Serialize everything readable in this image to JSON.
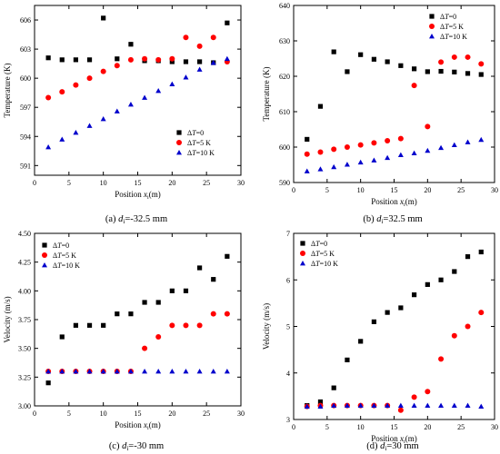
{
  "legend_dt_prefix": "Δ",
  "legend_dt_letter": "T",
  "caption_d_letter": "d",
  "caption_d_sub": "i",
  "x_axis_label_prefix": "Position ",
  "x_axis_label_x": "x",
  "x_axis_label_sub": "i",
  "x_axis_label_suffix": "(m)",
  "series_styles": [
    {
      "marker": "square",
      "color": "#000000"
    },
    {
      "marker": "circle",
      "color": "#ff0000"
    },
    {
      "marker": "triangle",
      "color": "#0000cc"
    }
  ],
  "chart_data": [
    {
      "type": "scatter",
      "panel_label": "(a)",
      "caption_value": "=-32.5 mm",
      "ylabel": "Temperature (K)",
      "xlim": [
        0,
        30
      ],
      "ylim": [
        590,
        607.5
      ],
      "xticks": [
        "0",
        "5",
        "10",
        "15",
        "20",
        "25",
        "30"
      ],
      "xtick_values": [
        0,
        5,
        10,
        15,
        20,
        25,
        30
      ],
      "yticks": [
        "591",
        "594",
        "597",
        "600",
        "603",
        "606"
      ],
      "ytick_values": [
        591,
        594,
        597,
        600,
        603,
        606
      ],
      "legend_position": "lower-right",
      "x": [
        2,
        4,
        6,
        8,
        10,
        12,
        14,
        16,
        18,
        20,
        22,
        24,
        26,
        28
      ],
      "series": [
        {
          "name": "=0",
          "legend_text": "=0",
          "values": [
            602.1,
            601.9,
            601.9,
            601.9,
            606.2,
            602.0,
            603.5,
            601.8,
            601.8,
            601.7,
            601.7,
            601.7,
            601.6,
            605.7
          ]
        },
        {
          "name": "=5 K",
          "legend_text": "=5 K",
          "values": [
            598.0,
            598.6,
            599.3,
            600.0,
            600.7,
            601.3,
            601.9,
            602.0,
            601.9,
            602.0,
            604.2,
            603.3,
            604.2,
            601.7
          ]
        },
        {
          "name": "=10 K",
          "legend_text": "=10 K",
          "values": [
            592.9,
            593.7,
            594.4,
            595.1,
            595.8,
            596.6,
            597.3,
            598.0,
            598.7,
            599.4,
            600.1,
            600.9,
            601.6,
            602.0
          ]
        }
      ]
    },
    {
      "type": "scatter",
      "panel_label": "(b)",
      "caption_value": "=32.5 mm",
      "ylabel": "Temperature (K)",
      "xlim": [
        0,
        30
      ],
      "ylim": [
        590,
        640
      ],
      "xticks": [
        "0",
        "5",
        "10",
        "15",
        "20",
        "25",
        "30"
      ],
      "xtick_values": [
        0,
        5,
        10,
        15,
        20,
        25,
        30
      ],
      "yticks": [
        "590",
        "600",
        "610",
        "620",
        "630",
        "640"
      ],
      "ytick_values": [
        590,
        600,
        610,
        620,
        630,
        640
      ],
      "legend_position": "top-right",
      "x": [
        2,
        4,
        6,
        8,
        10,
        12,
        14,
        16,
        18,
        20,
        22,
        24,
        26,
        28
      ],
      "series": [
        {
          "name": "=0",
          "legend_text": "=0",
          "values": [
            602.2,
            611.5,
            626.9,
            621.3,
            626.1,
            624.8,
            624.1,
            623.0,
            622.1,
            621.3,
            621.4,
            621.2,
            620.8,
            620.5
          ]
        },
        {
          "name": "=5 K",
          "legend_text": "=5 K",
          "values": [
            598.0,
            598.6,
            599.4,
            600.0,
            600.6,
            601.2,
            601.8,
            602.4,
            617.4,
            605.8,
            624.0,
            625.4,
            625.4,
            623.5
          ]
        },
        {
          "name": "=10 K",
          "legend_text": "=10 K",
          "values": [
            593.2,
            593.8,
            594.4,
            595.1,
            595.7,
            596.3,
            597.0,
            597.8,
            598.3,
            599.0,
            599.8,
            600.6,
            601.4,
            602.1
          ]
        }
      ]
    },
    {
      "type": "scatter",
      "panel_label": "(c)",
      "caption_value": "=-30 mm",
      "ylabel": "Velocity (m/s)",
      "xlim": [
        0,
        30
      ],
      "ylim": [
        3.0,
        4.5
      ],
      "xticks": [
        "0",
        "5",
        "10",
        "15",
        "20",
        "25",
        "30"
      ],
      "xtick_values": [
        0,
        5,
        10,
        15,
        20,
        25,
        30
      ],
      "yticks": [
        "3.00",
        "3.25",
        "3.50",
        "3.75",
        "4.00",
        "4.25",
        "4.50"
      ],
      "ytick_values": [
        3.0,
        3.25,
        3.5,
        3.75,
        4.0,
        4.25,
        4.5
      ],
      "legend_position": "top-left",
      "x": [
        2,
        4,
        6,
        8,
        10,
        12,
        14,
        16,
        18,
        20,
        22,
        24,
        26,
        28
      ],
      "series": [
        {
          "name": "=0",
          "legend_text": "=0",
          "values": [
            3.2,
            3.6,
            3.7,
            3.7,
            3.7,
            3.8,
            3.8,
            3.9,
            3.9,
            4.0,
            4.0,
            4.2,
            4.1,
            4.3
          ]
        },
        {
          "name": "=5 K",
          "legend_text": "=5 K",
          "values": [
            3.3,
            3.3,
            3.3,
            3.3,
            3.3,
            3.3,
            3.3,
            3.5,
            3.6,
            3.7,
            3.7,
            3.7,
            3.8,
            3.8
          ]
        },
        {
          "name": "=10 K",
          "legend_text": "=10 K",
          "values": [
            3.3,
            3.3,
            3.3,
            3.3,
            3.3,
            3.3,
            3.3,
            3.3,
            3.3,
            3.3,
            3.3,
            3.3,
            3.3,
            3.3
          ]
        }
      ]
    },
    {
      "type": "scatter",
      "panel_label": "(d)",
      "caption_value": "=30 mm",
      "ylabel": "Velocity (m/s)",
      "xlim": [
        0,
        30
      ],
      "ylim": [
        3.0,
        7.0
      ],
      "xticks": [
        "0",
        "5",
        "10",
        "15",
        "20",
        "25",
        "30"
      ],
      "xtick_values": [
        0,
        5,
        10,
        15,
        20,
        25,
        30
      ],
      "yticks": [
        "3",
        "4",
        "5",
        "6",
        "7"
      ],
      "ytick_values": [
        3,
        4,
        5,
        6,
        7
      ],
      "legend_position": "top-left",
      "x": [
        2,
        4,
        6,
        8,
        10,
        12,
        14,
        16,
        18,
        20,
        22,
        24,
        26,
        28
      ],
      "series": [
        {
          "name": "=0",
          "legend_text": "=0",
          "values": [
            3.3,
            3.38,
            3.68,
            4.28,
            4.68,
            5.1,
            5.3,
            5.4,
            5.68,
            5.9,
            6.0,
            6.18,
            6.5,
            6.6
          ]
        },
        {
          "name": "=5 K",
          "legend_text": "=5 K",
          "values": [
            3.28,
            3.3,
            3.3,
            3.3,
            3.3,
            3.3,
            3.3,
            3.2,
            3.48,
            3.6,
            4.3,
            4.8,
            5.0,
            5.3
          ]
        },
        {
          "name": "=10 K",
          "legend_text": "=10 K",
          "values": [
            3.28,
            3.28,
            3.3,
            3.3,
            3.3,
            3.3,
            3.3,
            3.3,
            3.3,
            3.3,
            3.3,
            3.3,
            3.3,
            3.28
          ]
        }
      ]
    }
  ]
}
